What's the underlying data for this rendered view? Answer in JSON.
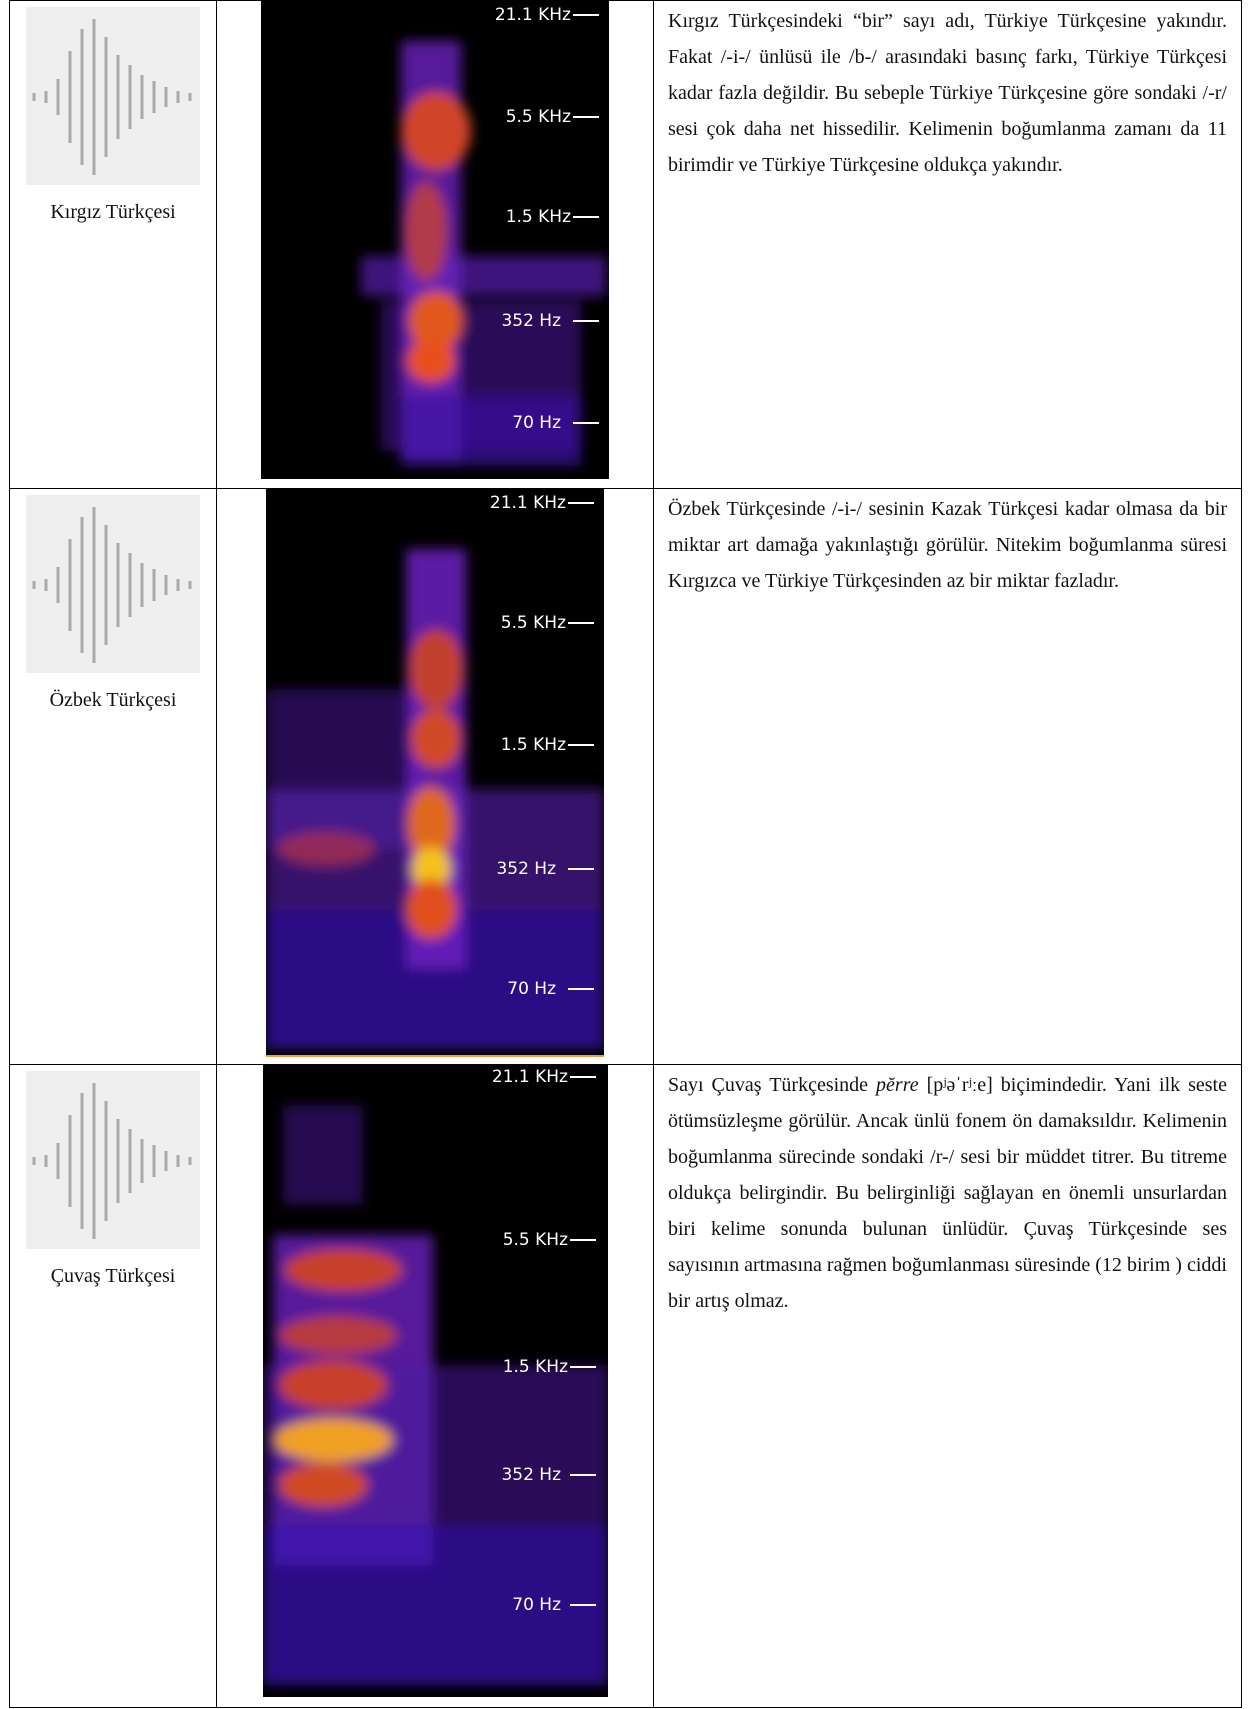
{
  "rows": [
    {
      "language": "Kırgız Türkçesi",
      "frequency_labels": [
        "21.1 KHz",
        "5.5 KHz",
        "1.5 KHz",
        "352 Hz",
        "70 Hz"
      ],
      "description": [
        "Kırgız Türkçesindeki “bir” sayı adı, Türkiye Türkçesine yakındır. Fakat /-i-/ ünlüsü ile /b-/ arasındaki basınç farkı, Türkiye Türkçesi kadar fazla değildir. Bu sebeple Türkiye Türkçesine göre sondaki /-r/ sesi çok daha net hissedilir. Kelimenin boğumlanma zamanı da 11 birimdir ve Türkiye Türkçesine oldukça yakındır."
      ]
    },
    {
      "language": "Özbek Türkçesi",
      "frequency_labels": [
        "21.1 KHz",
        "5.5 KHz",
        "1.5 KHz",
        "352 Hz",
        "70 Hz"
      ],
      "description": [
        "Özbek Türkçesinde /-i-/ sesinin Kazak Türkçesi kadar olmasa da bir miktar art damağa yakınlaştığı görülür. Nitekim boğumlanma süresi Kırgızca ve Türkiye Türkçesinden az bir miktar fazladır."
      ]
    },
    {
      "language": "Çuvaş Türkçesi",
      "frequency_labels": [
        "21.1 KHz",
        "5.5 KHz",
        "1.5 KHz",
        "352 Hz",
        "70 Hz"
      ],
      "description": [
        "Sayı Çuvaş Türkçesinde ",
        "pĕrre",
        " [pʲəˈrʲːe] biçimindedir. Yani ilk seste ötümsüzleşme görülür. Ancak ünlü fonem ön damaksıldır. Kelimenin boğumlanma sürecinde sondaki /r-/ sesi bir müddet titrer. Bu titreme oldukça belirgindir. Bu belirginliği sağlayan en önemli unsurlardan biri kelime sonunda bulunan ünlüdür. Çuvaş Türkçesinde ses sayısının artmasına rağmen boğumlanması süresinde (12 birim ) ciddi bir artış olmaz."
      ]
    }
  ]
}
